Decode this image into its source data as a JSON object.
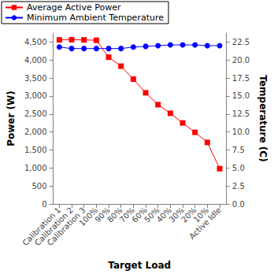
{
  "chart_data": {
    "type": "line",
    "x_label": "Target Load",
    "y_label": "Power (W)",
    "y2_label": "Temperature (C)",
    "categories": [
      "Calibration 1",
      "Calibration 2",
      "Calibration 3",
      "100%",
      "90%",
      "80%",
      "70%",
      "60%",
      "50%",
      "40%",
      "30%",
      "20%",
      "10%",
      "Active Idle"
    ],
    "series": [
      {
        "name": "Average Active Power",
        "color": "#ff0000",
        "marker": "square",
        "values": [
          4560,
          4565,
          4560,
          4550,
          4080,
          3830,
          3470,
          3090,
          2760,
          2520,
          2250,
          1990,
          1710,
          980
        ]
      },
      {
        "name": "Minimum Ambient Temperature",
        "color": "#0000ff",
        "marker": "circle",
        "axis": "y2",
        "values": [
          21.8,
          21.6,
          21.6,
          21.6,
          21.6,
          21.6,
          21.8,
          21.9,
          22.0,
          22.1,
          22.1,
          22.1,
          22.0,
          22.0
        ]
      }
    ],
    "ylim": [
      0,
      4750
    ],
    "yticks": [
      0,
      500,
      {
        "value": 1000,
        "label": "1,000"
      },
      {
        "value": 1500,
        "label": "1,500"
      },
      {
        "value": 2000,
        "label": "2,000"
      },
      {
        "value": 2500,
        "label": "2,500"
      },
      {
        "value": 3000,
        "label": "3,000"
      },
      {
        "value": 3500,
        "label": "3,500"
      },
      {
        "value": 4000,
        "label": "4,000"
      },
      {
        "value": 4500,
        "label": "4,500"
      }
    ],
    "y2lim": [
      0,
      23.75
    ],
    "y2ticks": [
      {
        "value": 0,
        "label": "0.0"
      },
      2.5,
      {
        "value": 5,
        "label": "5.0"
      },
      7.5,
      {
        "value": 10,
        "label": "10.0"
      },
      12.5,
      {
        "value": 15,
        "label": "15.0"
      },
      17.5,
      {
        "value": 20,
        "label": "20.0"
      },
      22.5
    ],
    "grid": false,
    "legend": "top-left"
  }
}
